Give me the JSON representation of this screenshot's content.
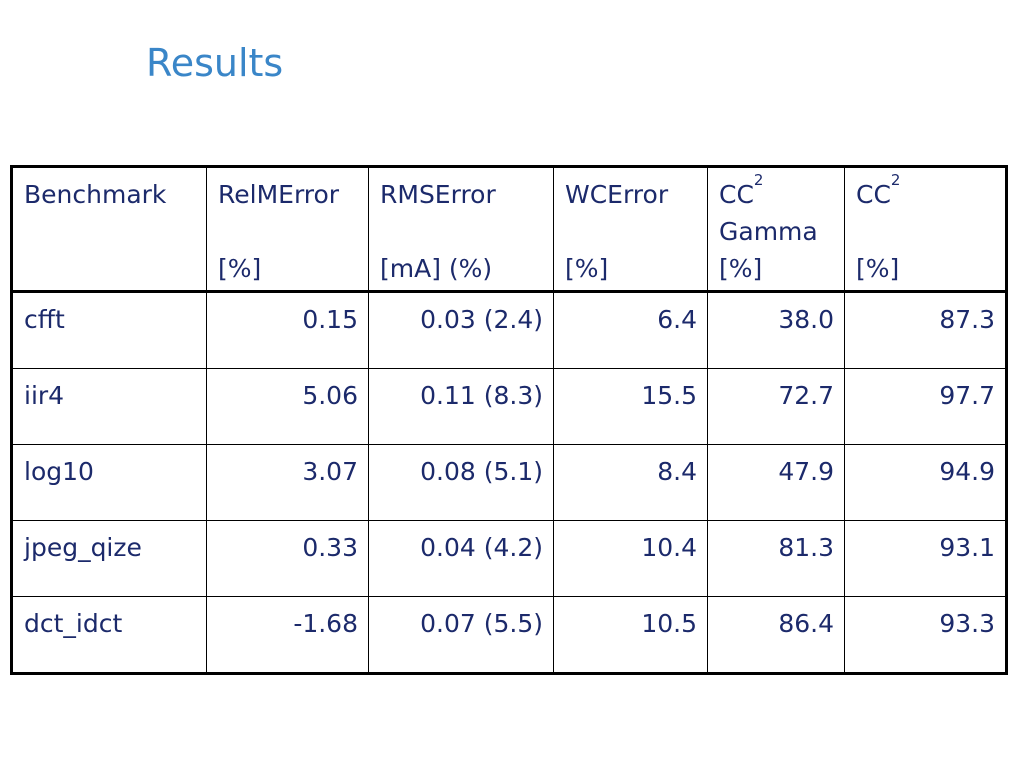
{
  "title": "Results",
  "table": {
    "headers": [
      {
        "line1": "Benchmark",
        "sup": "",
        "line2": "",
        "line3": ""
      },
      {
        "line1": "RelMError",
        "sup": "",
        "line2": "",
        "line3": "[%]"
      },
      {
        "line1": "RMSError",
        "sup": "",
        "line2": "",
        "line3": "[mA] (%)"
      },
      {
        "line1": "WCError",
        "sup": "",
        "line2": "",
        "line3": "[%]"
      },
      {
        "line1": "CC",
        "sup": "2",
        "line2": "Gamma",
        "line3": "[%]"
      },
      {
        "line1": "CC",
        "sup": "2",
        "line2": "",
        "line3": "[%]"
      }
    ],
    "rows": [
      [
        "cfft",
        "0.15",
        "0.03 (2.4)",
        "6.4",
        "38.0",
        "87.3"
      ],
      [
        "iir4",
        "5.06",
        "0.11 (8.3)",
        "15.5",
        "72.7",
        "97.7"
      ],
      [
        "log10",
        "3.07",
        "0.08 (5.1)",
        "8.4",
        "47.9",
        "94.9"
      ],
      [
        "jpeg_qize",
        "0.33",
        "0.04 (4.2)",
        "10.4",
        "81.3",
        "93.1"
      ],
      [
        "dct_idct",
        "-1.68",
        "0.07 (5.5)",
        "10.5",
        "86.4",
        "93.3"
      ]
    ]
  }
}
